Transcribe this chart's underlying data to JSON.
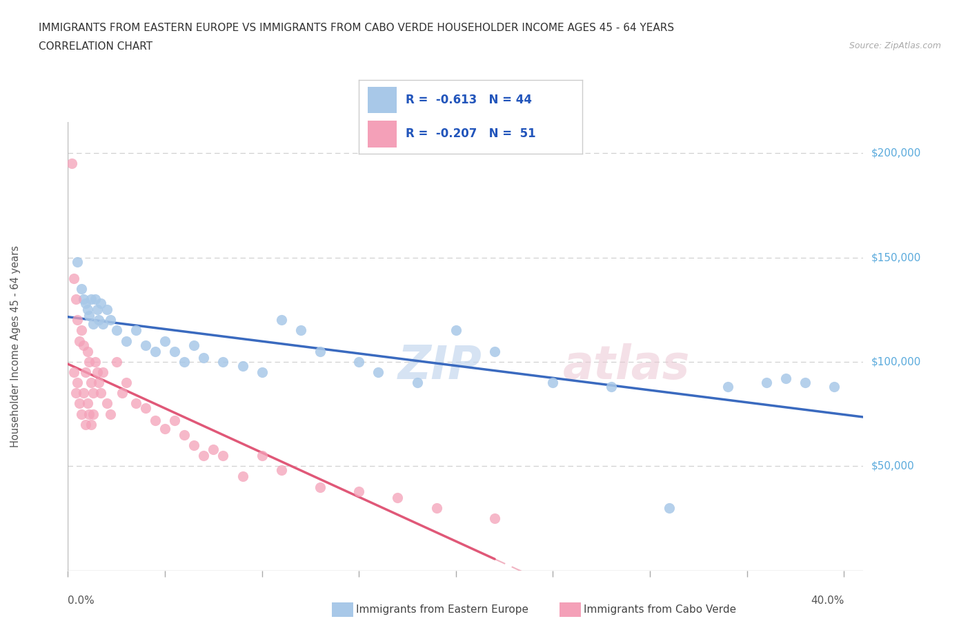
{
  "title_line1": "IMMIGRANTS FROM EASTERN EUROPE VS IMMIGRANTS FROM CABO VERDE HOUSEHOLDER INCOME AGES 45 - 64 YEARS",
  "title_line2": "CORRELATION CHART",
  "source": "Source: ZipAtlas.com",
  "ylabel": "Householder Income Ages 45 - 64 years",
  "eastern_europe_R": -0.613,
  "eastern_europe_N": 44,
  "cabo_verde_R": -0.207,
  "cabo_verde_N": 51,
  "eastern_europe_color": "#a8c8e8",
  "eastern_europe_line_color": "#3a6abf",
  "cabo_verde_color": "#f4a0b8",
  "cabo_verde_line_color": "#e05878",
  "background_color": "#ffffff",
  "grid_color": "#cccccc",
  "yaxis_color": "#5aaadc",
  "xmin": 0.0,
  "xmax": 0.41,
  "ymin": 0,
  "ymax": 215000,
  "yaxis_ticks": [
    50000,
    100000,
    150000,
    200000
  ],
  "yaxis_labels": [
    "$50,000",
    "$100,000",
    "$150,000",
    "$200,000"
  ],
  "watermark_zip": "ZIP",
  "watermark_atlas": "atlas",
  "legend_label1": "Immigrants from Eastern Europe",
  "legend_label2": "Immigrants from Cabo Verde",
  "ee_x": [
    0.005,
    0.007,
    0.008,
    0.009,
    0.01,
    0.011,
    0.012,
    0.013,
    0.014,
    0.015,
    0.016,
    0.017,
    0.018,
    0.02,
    0.022,
    0.025,
    0.03,
    0.035,
    0.04,
    0.045,
    0.05,
    0.055,
    0.06,
    0.065,
    0.07,
    0.08,
    0.09,
    0.1,
    0.11,
    0.12,
    0.13,
    0.15,
    0.16,
    0.18,
    0.2,
    0.22,
    0.25,
    0.28,
    0.31,
    0.34,
    0.36,
    0.37,
    0.38,
    0.395
  ],
  "ee_y": [
    148000,
    135000,
    130000,
    128000,
    125000,
    122000,
    130000,
    118000,
    130000,
    125000,
    120000,
    128000,
    118000,
    125000,
    120000,
    115000,
    110000,
    115000,
    108000,
    105000,
    110000,
    105000,
    100000,
    108000,
    102000,
    100000,
    98000,
    95000,
    120000,
    115000,
    105000,
    100000,
    95000,
    90000,
    115000,
    105000,
    90000,
    88000,
    30000,
    88000,
    90000,
    92000,
    90000,
    88000
  ],
  "cv_x": [
    0.002,
    0.003,
    0.003,
    0.004,
    0.004,
    0.005,
    0.005,
    0.006,
    0.006,
    0.007,
    0.007,
    0.008,
    0.008,
    0.009,
    0.009,
    0.01,
    0.01,
    0.011,
    0.011,
    0.012,
    0.012,
    0.013,
    0.013,
    0.014,
    0.015,
    0.016,
    0.017,
    0.018,
    0.02,
    0.022,
    0.025,
    0.028,
    0.03,
    0.035,
    0.04,
    0.045,
    0.05,
    0.055,
    0.06,
    0.065,
    0.07,
    0.075,
    0.08,
    0.09,
    0.1,
    0.11,
    0.13,
    0.15,
    0.17,
    0.19,
    0.22
  ],
  "cv_y": [
    195000,
    140000,
    95000,
    130000,
    85000,
    120000,
    90000,
    110000,
    80000,
    115000,
    75000,
    108000,
    85000,
    95000,
    70000,
    105000,
    80000,
    100000,
    75000,
    90000,
    70000,
    85000,
    75000,
    100000,
    95000,
    90000,
    85000,
    95000,
    80000,
    75000,
    100000,
    85000,
    90000,
    80000,
    78000,
    72000,
    68000,
    72000,
    65000,
    60000,
    55000,
    58000,
    55000,
    45000,
    55000,
    48000,
    40000,
    38000,
    35000,
    30000,
    25000
  ]
}
